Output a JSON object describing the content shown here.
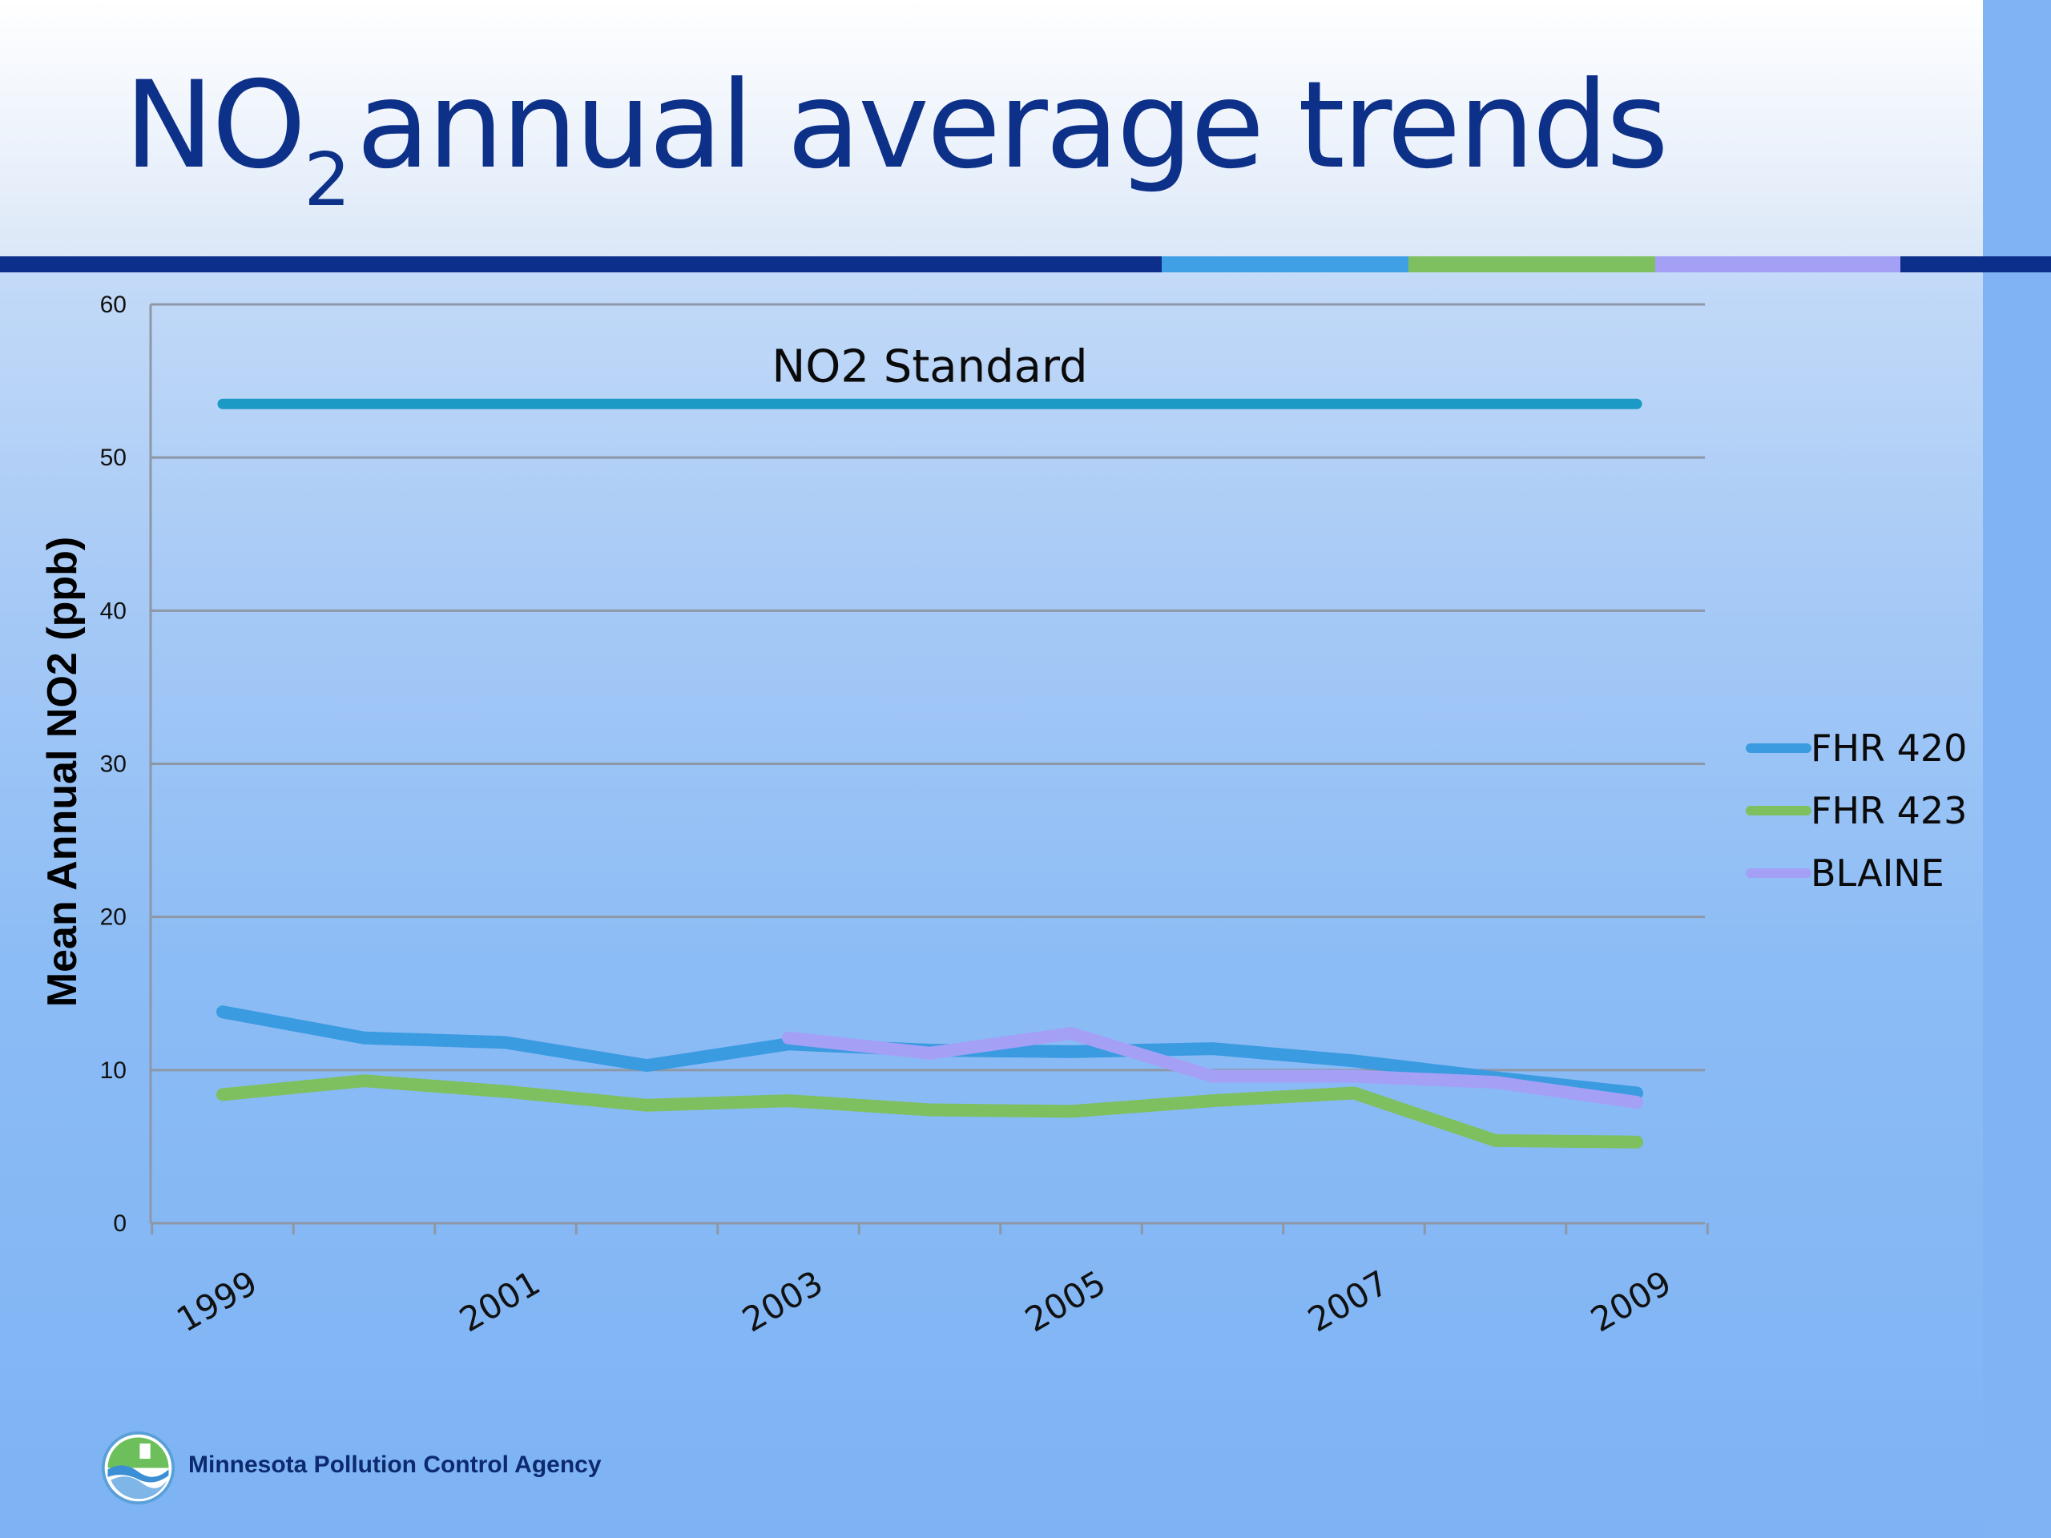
{
  "slide": {
    "title_main": "NO",
    "title_sub": "2",
    "title_rest": "annual average trends",
    "footer_agency": "Minnesota Pollution Control Agency",
    "colors": {
      "title": "#0d3189",
      "bar_dark": "#0b2f8a",
      "bar_blue": "#40a0e6",
      "bar_green": "#7ec05f",
      "bar_purple": "#a4a0f6"
    }
  },
  "chart_data": {
    "type": "line",
    "ylabel": "Mean Annual NO2 (ppb)",
    "ylim": [
      0,
      60
    ],
    "yticks": [
      0,
      10,
      20,
      30,
      40,
      50,
      60
    ],
    "x": [
      1999,
      2000,
      2001,
      2002,
      2003,
      2004,
      2005,
      2006,
      2007,
      2008,
      2009
    ],
    "xtick_labels": [
      "1999",
      "2001",
      "2003",
      "2005",
      "2007",
      "2009"
    ],
    "grid": "horizontal",
    "legend_position": "right",
    "series": [
      {
        "name": "FHR 420",
        "color": "#3a9be0",
        "values": [
          13.8,
          12.1,
          11.8,
          10.3,
          11.7,
          11.3,
          11.2,
          11.4,
          10.6,
          9.5,
          8.5
        ]
      },
      {
        "name": "FHR 423",
        "color": "#7ec05f",
        "values": [
          8.4,
          9.3,
          8.6,
          7.7,
          8.0,
          7.4,
          7.3,
          8.0,
          8.5,
          5.4,
          5.3
        ]
      },
      {
        "name": "BLAINE",
        "color": "#a4a0f6",
        "values": [
          null,
          null,
          null,
          null,
          12.1,
          11.1,
          12.4,
          9.6,
          9.6,
          9.2,
          7.9
        ]
      }
    ],
    "reference_line": {
      "label": "NO2 Standard",
      "value": 53.5,
      "color": "#1a9ac4"
    }
  }
}
